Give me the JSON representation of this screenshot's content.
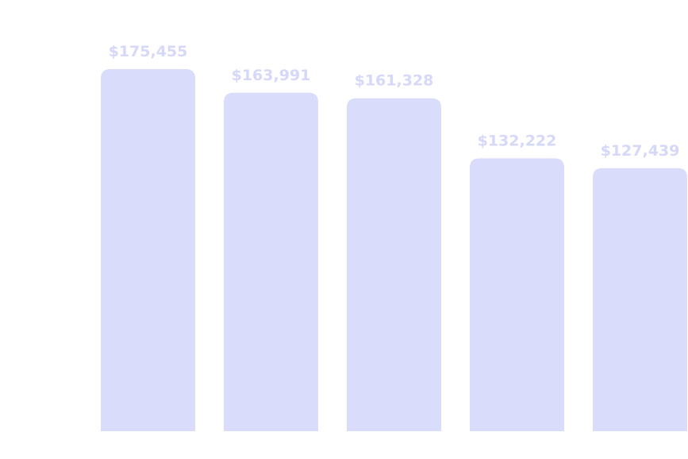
{
  "colors": {
    "bar": "#dadcfb",
    "label": "#d6d8fa",
    "background": "#ffffff"
  },
  "chart_data": {
    "type": "bar",
    "categories": [
      "",
      "",
      "",
      "",
      ""
    ],
    "values": [
      175455,
      163991,
      161328,
      132222,
      127439
    ],
    "value_labels": [
      "$175,455",
      "$163,991",
      "$161,328",
      "$132,222",
      "$127,439"
    ],
    "title": "",
    "xlabel": "",
    "ylabel": "",
    "ylim": [
      0,
      185000
    ],
    "grid": false,
    "legend": "none"
  }
}
